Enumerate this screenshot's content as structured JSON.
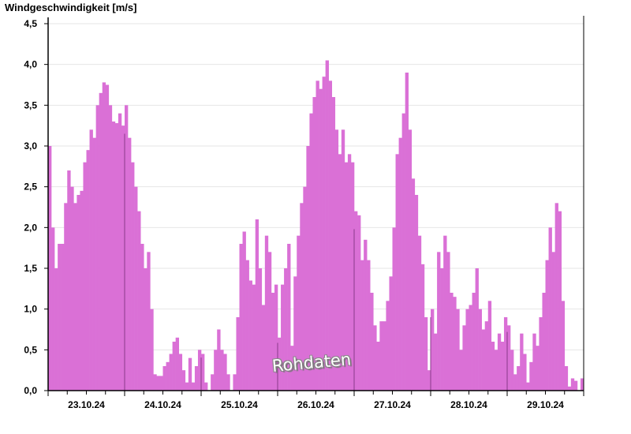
{
  "chart_data": {
    "type": "bar",
    "title": "Windgeschwindigkeit [m/s]",
    "xlabel": "",
    "ylabel": "",
    "ylim": [
      0,
      4.5
    ],
    "yticks": [
      "0,0",
      "0,5",
      "1,0",
      "1,5",
      "2,0",
      "2,5",
      "3,0",
      "3,5",
      "4,0",
      "4,5"
    ],
    "grid": true,
    "fill_color": "#da70d6",
    "midnight_marker_color": "#8b3a8b",
    "watermark": "Rohdaten",
    "days": [
      {
        "date": "23.10.24",
        "hourly": [
          3.0,
          2.0,
          1.5,
          1.8,
          1.8,
          2.3,
          2.7,
          2.5,
          2.3,
          2.4,
          2.45,
          2.8,
          2.95,
          3.2,
          3.1,
          3.5,
          3.65,
          3.78,
          3.75,
          3.5,
          3.3,
          3.28,
          3.4,
          3.25
        ]
      },
      {
        "date": "24.10.24",
        "hourly": [
          3.5,
          3.1,
          2.8,
          2.5,
          2.2,
          1.8,
          1.5,
          1.7,
          1.0,
          0.2,
          0.18,
          0.18,
          0.3,
          0.35,
          0.45,
          0.6,
          0.65,
          0.45,
          0.25,
          0.1,
          0.4,
          0.1,
          0.3,
          0.5
        ]
      },
      {
        "date": "25.10.24",
        "hourly": [
          0.45,
          0.1,
          0.0,
          0.2,
          0.5,
          0.75,
          0.5,
          0.45,
          0.2,
          0.0,
          0.2,
          0.9,
          1.8,
          1.95,
          1.6,
          1.35,
          1.3,
          2.1,
          1.5,
          1.05,
          1.9,
          1.7,
          1.2,
          1.3
        ]
      },
      {
        "date": "26.10.24",
        "hourly": [
          0.65,
          1.3,
          1.5,
          1.8,
          0.55,
          1.4,
          1.9,
          2.3,
          2.5,
          3.0,
          3.4,
          3.6,
          3.8,
          3.7,
          3.85,
          4.05,
          3.8,
          3.6,
          3.2,
          2.9,
          3.2,
          2.8,
          2.9,
          2.8
        ]
      },
      {
        "date": "27.10.24",
        "hourly": [
          2.2,
          2.15,
          1.6,
          1.85,
          1.6,
          1.2,
          0.8,
          0.6,
          0.85,
          0.85,
          1.1,
          1.4,
          2.0,
          2.9,
          3.1,
          3.4,
          3.9,
          3.2,
          2.6,
          2.4,
          1.9,
          1.55,
          0.9,
          0.25
        ]
      },
      {
        "date": "28.10.24",
        "hourly": [
          1.0,
          0.7,
          1.7,
          1.5,
          1.9,
          1.7,
          1.2,
          1.15,
          1.0,
          0.5,
          0.8,
          1.0,
          1.05,
          1.2,
          1.5,
          1.0,
          0.75,
          0.85,
          1.1,
          0.6,
          0.5,
          0.7,
          0.6,
          0.9
        ]
      },
      {
        "date": "29.10.24",
        "hourly": [
          0.8,
          0.5,
          0.2,
          0.3,
          0.7,
          0.45,
          0.1,
          0.35,
          0.7,
          0.55,
          0.9,
          1.2,
          1.6,
          2.0,
          1.7,
          2.3,
          2.2,
          1.1,
          0.3,
          0.05,
          0.15,
          0.12,
          0.0,
          0.15
        ]
      }
    ]
  }
}
